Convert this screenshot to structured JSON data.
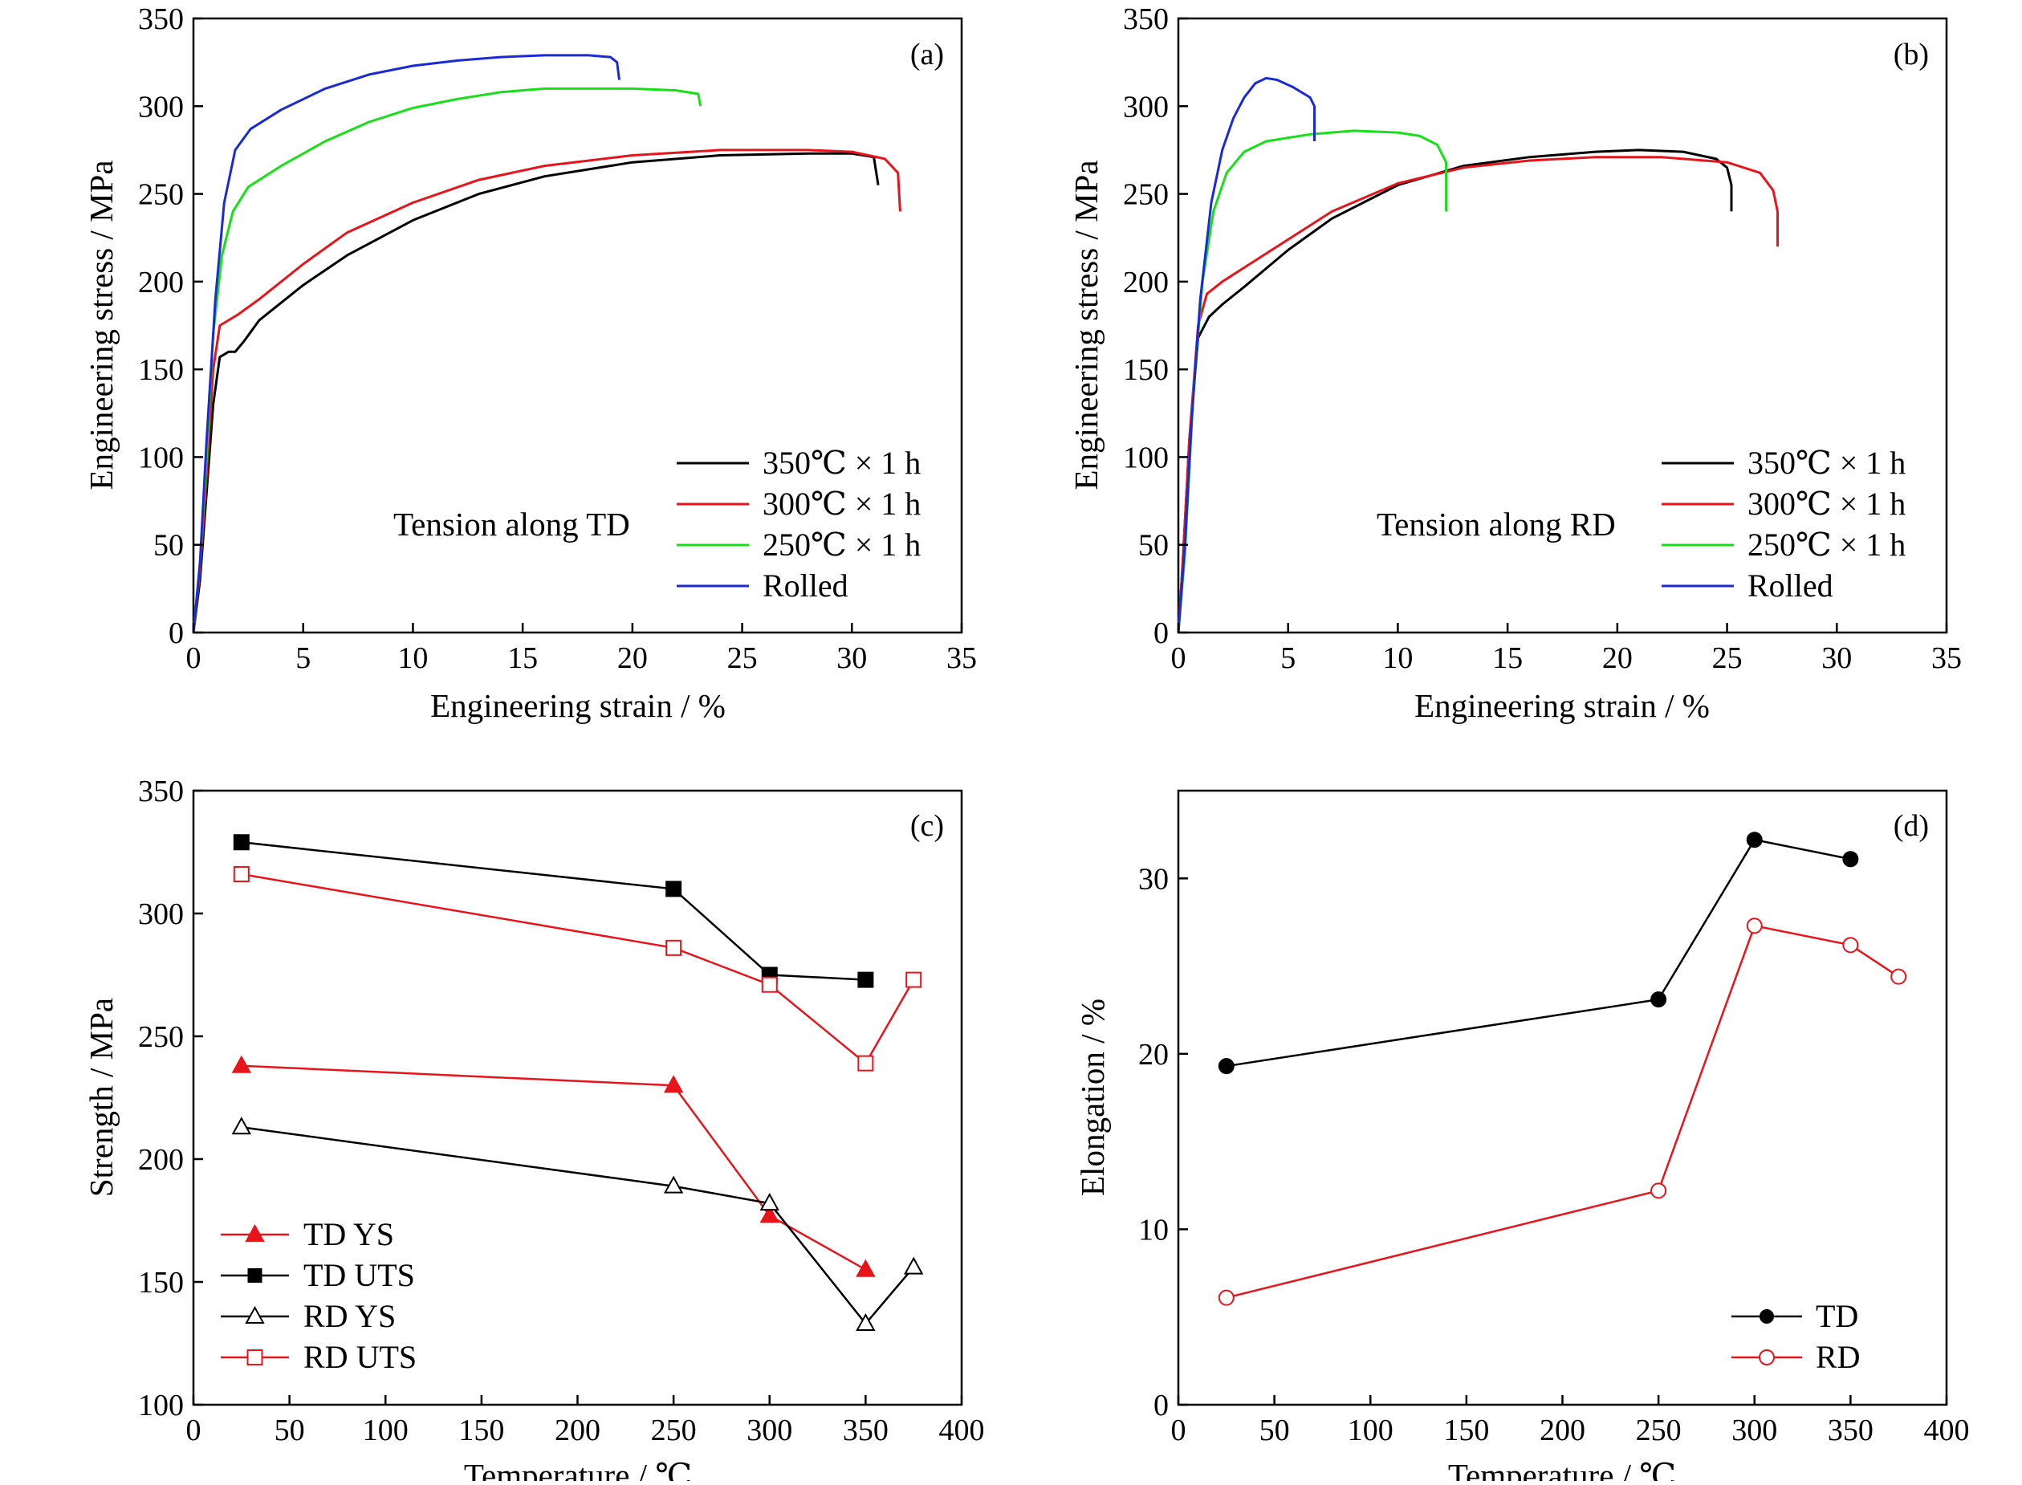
{
  "colors": {
    "black": "#000000",
    "red": "#e8141b",
    "green": "#18e018",
    "blue": "#1a2ad6"
  },
  "panels": [
    {
      "id": "a",
      "label": "(a)",
      "annotation": "Tension along TD",
      "xlabel": "Engineering strain / %",
      "ylabel": "Engineering stress / MPa",
      "x_ticks": [
        "0",
        "5",
        "10",
        "15",
        "20",
        "25",
        "30",
        "35"
      ],
      "y_ticks": [
        "0",
        "50",
        "100",
        "150",
        "200",
        "250",
        "300",
        "350"
      ],
      "legend": [
        "350℃ × 1 h",
        "300℃ × 1 h",
        "250℃ × 1 h",
        "Rolled"
      ]
    },
    {
      "id": "b",
      "label": "(b)",
      "annotation": "Tension along RD",
      "xlabel": "Engineering strain / %",
      "ylabel": "Engineering stress / MPa",
      "x_ticks": [
        "0",
        "5",
        "10",
        "15",
        "20",
        "25",
        "30",
        "35"
      ],
      "y_ticks": [
        "0",
        "50",
        "100",
        "150",
        "200",
        "250",
        "300",
        "350"
      ],
      "legend": [
        "350℃ × 1 h",
        "300℃ × 1 h",
        "250℃ × 1 h",
        "Rolled"
      ]
    },
    {
      "id": "c",
      "label": "(c)",
      "xlabel": "Temperature / ℃",
      "ylabel": "Strength / MPa",
      "x_ticks": [
        "0",
        "50",
        "100",
        "150",
        "200",
        "250",
        "300",
        "350",
        "400"
      ],
      "y_ticks": [
        "100",
        "150",
        "200",
        "250",
        "300",
        "350"
      ],
      "legend": [
        "TD YS",
        "TD UTS",
        "RD YS",
        "RD UTS"
      ]
    },
    {
      "id": "d",
      "label": "(d)",
      "xlabel": "Temperature / ℃",
      "ylabel": "Elongation / %",
      "x_ticks": [
        "0",
        "50",
        "100",
        "150",
        "200",
        "250",
        "300",
        "350",
        "400"
      ],
      "y_ticks": [
        "0",
        "10",
        "20",
        "30"
      ],
      "legend": [
        "TD",
        "RD"
      ]
    }
  ],
  "chart_data": [
    {
      "panel": "a",
      "type": "line",
      "xlim": [
        0,
        35
      ],
      "ylim": [
        0,
        350
      ],
      "series": [
        {
          "name": "350℃ × 1 h",
          "color": "#000000",
          "points": [
            [
              0,
              0
            ],
            [
              0.3,
              30
            ],
            [
              0.6,
              80
            ],
            [
              0.9,
              130
            ],
            [
              1.2,
              157
            ],
            [
              1.6,
              160
            ],
            [
              1.9,
              160
            ],
            [
              2.3,
              166
            ],
            [
              3,
              178
            ],
            [
              5,
              198
            ],
            [
              7,
              215
            ],
            [
              10,
              235
            ],
            [
              13,
              250
            ],
            [
              16,
              260
            ],
            [
              20,
              268
            ],
            [
              24,
              272
            ],
            [
              28,
              273
            ],
            [
              30,
              273
            ],
            [
              31,
              271
            ],
            [
              31.2,
              255
            ]
          ]
        },
        {
          "name": "300℃ × 1 h",
          "color": "#e8141b",
          "points": [
            [
              0,
              0
            ],
            [
              0.3,
              35
            ],
            [
              0.6,
              90
            ],
            [
              0.9,
              150
            ],
            [
              1.2,
              175
            ],
            [
              2,
              181
            ],
            [
              3,
              190
            ],
            [
              5,
              210
            ],
            [
              7,
              228
            ],
            [
              10,
              245
            ],
            [
              13,
              258
            ],
            [
              16,
              266
            ],
            [
              20,
              272
            ],
            [
              24,
              275
            ],
            [
              28,
              275
            ],
            [
              30,
              274
            ],
            [
              31.5,
              270
            ],
            [
              32.1,
              262
            ],
            [
              32.2,
              240
            ]
          ]
        },
        {
          "name": "250℃ × 1 h",
          "color": "#18e018",
          "points": [
            [
              0,
              0
            ],
            [
              0.3,
              40
            ],
            [
              0.6,
              100
            ],
            [
              0.9,
              170
            ],
            [
              1.3,
              215
            ],
            [
              1.8,
              240
            ],
            [
              2.5,
              254
            ],
            [
              4,
              266
            ],
            [
              6,
              280
            ],
            [
              8,
              291
            ],
            [
              10,
              299
            ],
            [
              12,
              304
            ],
            [
              14,
              308
            ],
            [
              16,
              310
            ],
            [
              18,
              310
            ],
            [
              20,
              310
            ],
            [
              22,
              309
            ],
            [
              23,
              307
            ],
            [
              23.1,
              300
            ]
          ]
        },
        {
          "name": "Rolled",
          "color": "#1a2ad6",
          "points": [
            [
              0,
              0
            ],
            [
              0.3,
              40
            ],
            [
              0.6,
              110
            ],
            [
              1,
              190
            ],
            [
              1.4,
              245
            ],
            [
              1.9,
              275
            ],
            [
              2.6,
              287
            ],
            [
              4,
              298
            ],
            [
              6,
              310
            ],
            [
              8,
              318
            ],
            [
              10,
              323
            ],
            [
              12,
              326
            ],
            [
              14,
              328
            ],
            [
              16,
              329
            ],
            [
              18,
              329
            ],
            [
              19,
              328
            ],
            [
              19.3,
              325
            ],
            [
              19.4,
              315
            ]
          ]
        }
      ]
    },
    {
      "panel": "b",
      "type": "line",
      "xlim": [
        0,
        35
      ],
      "ylim": [
        0,
        350
      ],
      "series": [
        {
          "name": "350℃ × 1 h",
          "color": "#000000",
          "points": [
            [
              0,
              0
            ],
            [
              0.2,
              40
            ],
            [
              0.5,
              110
            ],
            [
              0.9,
              168
            ],
            [
              1.4,
              180
            ],
            [
              2,
              187
            ],
            [
              3,
              197
            ],
            [
              5,
              218
            ],
            [
              7,
              236
            ],
            [
              10,
              255
            ],
            [
              13,
              266
            ],
            [
              16,
              271
            ],
            [
              19,
              274
            ],
            [
              21,
              275
            ],
            [
              23,
              274
            ],
            [
              24.5,
              270
            ],
            [
              25,
              265
            ],
            [
              25.2,
              255
            ],
            [
              25.2,
              240
            ]
          ]
        },
        {
          "name": "300℃ × 1 h",
          "color": "#e8141b",
          "points": [
            [
              0,
              0
            ],
            [
              0.2,
              40
            ],
            [
              0.5,
              110
            ],
            [
              0.9,
              175
            ],
            [
              1.3,
              193
            ],
            [
              2,
              200
            ],
            [
              3,
              208
            ],
            [
              5,
              224
            ],
            [
              7,
              240
            ],
            [
              10,
              256
            ],
            [
              13,
              265
            ],
            [
              16,
              269
            ],
            [
              19,
              271
            ],
            [
              22,
              271
            ],
            [
              25,
              268
            ],
            [
              26.5,
              262
            ],
            [
              27.1,
              252
            ],
            [
              27.3,
              240
            ],
            [
              27.3,
              220
            ]
          ]
        },
        {
          "name": "250℃ × 1 h",
          "color": "#18e018",
          "points": [
            [
              0,
              0
            ],
            [
              0.3,
              45
            ],
            [
              0.7,
              140
            ],
            [
              1.1,
              200
            ],
            [
              1.6,
              240
            ],
            [
              2.2,
              262
            ],
            [
              3,
              274
            ],
            [
              4,
              280
            ],
            [
              6,
              284
            ],
            [
              8,
              286
            ],
            [
              10,
              285
            ],
            [
              11,
              283
            ],
            [
              11.8,
              278
            ],
            [
              12.2,
              268
            ],
            [
              12.2,
              240
            ]
          ]
        },
        {
          "name": "Rolled",
          "color": "#1a2ad6",
          "points": [
            [
              0,
              0
            ],
            [
              0.3,
              50
            ],
            [
              0.6,
              120
            ],
            [
              1,
              190
            ],
            [
              1.5,
              245
            ],
            [
              2,
              275
            ],
            [
              2.5,
              293
            ],
            [
              3,
              305
            ],
            [
              3.5,
              313
            ],
            [
              4,
              316
            ],
            [
              4.5,
              315
            ],
            [
              5.2,
              311
            ],
            [
              6,
              305
            ],
            [
              6.2,
              300
            ],
            [
              6.2,
              280
            ]
          ]
        }
      ]
    },
    {
      "panel": "c",
      "type": "scatter",
      "xlim": [
        0,
        400
      ],
      "ylim": [
        100,
        350
      ],
      "series": [
        {
          "name": "TD YS",
          "color": "#e8141b",
          "marker": "triangle-filled",
          "x": [
            25,
            250,
            300,
            350
          ],
          "y": [
            238,
            230,
            177,
            155
          ]
        },
        {
          "name": "TD UTS",
          "color": "#000000",
          "marker": "square-filled",
          "x": [
            25,
            250,
            300,
            350
          ],
          "y": [
            329,
            310,
            275,
            273
          ]
        },
        {
          "name": "RD YS",
          "color": "#000000",
          "marker": "triangle-open",
          "x": [
            25,
            250,
            300,
            350,
            375
          ],
          "y": [
            213,
            189,
            182,
            133,
            156
          ]
        },
        {
          "name": "RD UTS",
          "color": "#e8141b",
          "marker": "square-open",
          "x": [
            25,
            250,
            300,
            350,
            375
          ],
          "y": [
            316,
            286,
            271,
            239,
            273
          ]
        }
      ]
    },
    {
      "panel": "d",
      "type": "scatter",
      "xlim": [
        0,
        400
      ],
      "ylim": [
        0,
        35
      ],
      "series": [
        {
          "name": "TD",
          "color": "#000000",
          "marker": "circle-filled",
          "x": [
            25,
            250,
            300,
            350
          ],
          "y": [
            19.3,
            23.1,
            32.2,
            31.1
          ]
        },
        {
          "name": "RD",
          "color": "#e8141b",
          "marker": "circle-open",
          "x": [
            25,
            250,
            300,
            350,
            375
          ],
          "y": [
            6.1,
            12.2,
            27.3,
            26.2,
            24.4
          ]
        }
      ]
    }
  ]
}
